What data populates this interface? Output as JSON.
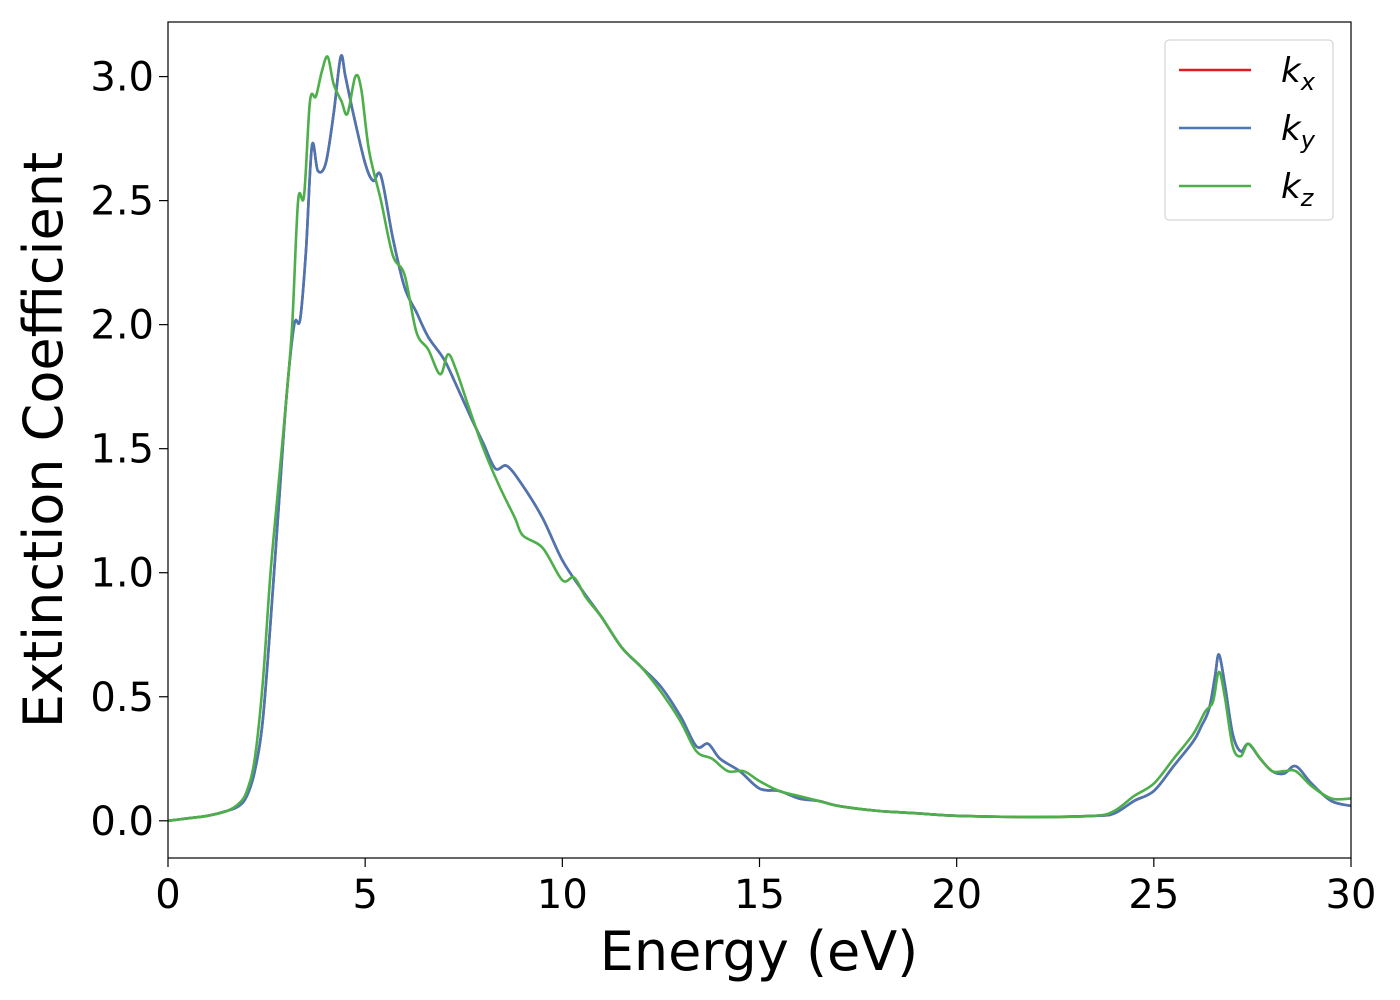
{
  "chart_data": {
    "type": "line",
    "title": "",
    "xlabel": "Energy (eV)",
    "ylabel": "Extinction Coefficient",
    "xlim": [
      0,
      30
    ],
    "ylim": [
      -0.15,
      3.22
    ],
    "xticks": [
      0,
      5,
      10,
      15,
      20,
      25,
      30
    ],
    "xtick_labels": [
      "0",
      "5",
      "10",
      "15",
      "20",
      "25",
      "30"
    ],
    "yticks": [
      0.0,
      0.5,
      1.0,
      1.5,
      2.0,
      2.5,
      3.0
    ],
    "ytick_labels": [
      "0.0",
      "0.5",
      "1.0",
      "1.5",
      "2.0",
      "2.5",
      "3.0"
    ],
    "grid": false,
    "legend_position": "top-right",
    "series": [
      {
        "name": "k",
        "subscript": "x",
        "color": "#e41a1c",
        "points": [
          [
            0,
            0
          ],
          [
            0.5,
            0.01
          ],
          [
            1,
            0.02
          ],
          [
            1.5,
            0.04
          ],
          [
            1.8,
            0.06
          ],
          [
            2.0,
            0.1
          ],
          [
            2.2,
            0.2
          ],
          [
            2.4,
            0.4
          ],
          [
            2.6,
            0.8
          ],
          [
            2.8,
            1.25
          ],
          [
            3.0,
            1.7
          ],
          [
            3.2,
            2.0
          ],
          [
            3.35,
            2.02
          ],
          [
            3.5,
            2.3
          ],
          [
            3.65,
            2.72
          ],
          [
            3.8,
            2.62
          ],
          [
            4.0,
            2.65
          ],
          [
            4.2,
            2.85
          ],
          [
            4.38,
            3.08
          ],
          [
            4.5,
            3.0
          ],
          [
            4.7,
            2.85
          ],
          [
            5.0,
            2.65
          ],
          [
            5.2,
            2.58
          ],
          [
            5.4,
            2.6
          ],
          [
            5.7,
            2.35
          ],
          [
            6.0,
            2.15
          ],
          [
            6.3,
            2.05
          ],
          [
            6.6,
            1.95
          ],
          [
            7.0,
            1.86
          ],
          [
            7.3,
            1.76
          ],
          [
            7.7,
            1.62
          ],
          [
            8.0,
            1.52
          ],
          [
            8.3,
            1.42
          ],
          [
            8.6,
            1.43
          ],
          [
            9.0,
            1.35
          ],
          [
            9.5,
            1.22
          ],
          [
            10.0,
            1.05
          ],
          [
            10.5,
            0.93
          ],
          [
            11.0,
            0.82
          ],
          [
            11.5,
            0.7
          ],
          [
            12.0,
            0.62
          ],
          [
            12.5,
            0.54
          ],
          [
            13.0,
            0.42
          ],
          [
            13.4,
            0.3
          ],
          [
            13.7,
            0.31
          ],
          [
            14.0,
            0.25
          ],
          [
            14.5,
            0.2
          ],
          [
            15.0,
            0.13
          ],
          [
            15.5,
            0.12
          ],
          [
            16.0,
            0.09
          ],
          [
            16.5,
            0.08
          ],
          [
            17.0,
            0.06
          ],
          [
            18.0,
            0.04
          ],
          [
            19.0,
            0.03
          ],
          [
            20.0,
            0.02
          ],
          [
            22.0,
            0.015
          ],
          [
            23.5,
            0.02
          ],
          [
            24.0,
            0.03
          ],
          [
            24.5,
            0.08
          ],
          [
            25.0,
            0.12
          ],
          [
            25.5,
            0.22
          ],
          [
            26.0,
            0.32
          ],
          [
            26.2,
            0.38
          ],
          [
            26.4,
            0.45
          ],
          [
            26.55,
            0.58
          ],
          [
            26.65,
            0.67
          ],
          [
            26.8,
            0.55
          ],
          [
            27.0,
            0.35
          ],
          [
            27.2,
            0.28
          ],
          [
            27.4,
            0.31
          ],
          [
            27.7,
            0.25
          ],
          [
            28.0,
            0.2
          ],
          [
            28.3,
            0.19
          ],
          [
            28.6,
            0.22
          ],
          [
            29.0,
            0.15
          ],
          [
            29.5,
            0.08
          ],
          [
            30.0,
            0.06
          ]
        ]
      },
      {
        "name": "k",
        "subscript": "y",
        "color": "#4a77b4",
        "points": [
          [
            0,
            0
          ],
          [
            0.5,
            0.01
          ],
          [
            1,
            0.02
          ],
          [
            1.5,
            0.04
          ],
          [
            1.8,
            0.06
          ],
          [
            2.0,
            0.1
          ],
          [
            2.2,
            0.2
          ],
          [
            2.4,
            0.4
          ],
          [
            2.6,
            0.8
          ],
          [
            2.8,
            1.25
          ],
          [
            3.0,
            1.7
          ],
          [
            3.2,
            2.0
          ],
          [
            3.35,
            2.02
          ],
          [
            3.5,
            2.3
          ],
          [
            3.65,
            2.72
          ],
          [
            3.8,
            2.62
          ],
          [
            4.0,
            2.65
          ],
          [
            4.2,
            2.85
          ],
          [
            4.38,
            3.08
          ],
          [
            4.5,
            3.0
          ],
          [
            4.7,
            2.85
          ],
          [
            5.0,
            2.65
          ],
          [
            5.2,
            2.58
          ],
          [
            5.4,
            2.6
          ],
          [
            5.7,
            2.35
          ],
          [
            6.0,
            2.15
          ],
          [
            6.3,
            2.05
          ],
          [
            6.6,
            1.95
          ],
          [
            7.0,
            1.86
          ],
          [
            7.3,
            1.76
          ],
          [
            7.7,
            1.62
          ],
          [
            8.0,
            1.52
          ],
          [
            8.3,
            1.42
          ],
          [
            8.6,
            1.43
          ],
          [
            9.0,
            1.35
          ],
          [
            9.5,
            1.22
          ],
          [
            10.0,
            1.05
          ],
          [
            10.5,
            0.93
          ],
          [
            11.0,
            0.82
          ],
          [
            11.5,
            0.7
          ],
          [
            12.0,
            0.62
          ],
          [
            12.5,
            0.54
          ],
          [
            13.0,
            0.42
          ],
          [
            13.4,
            0.3
          ],
          [
            13.7,
            0.31
          ],
          [
            14.0,
            0.25
          ],
          [
            14.5,
            0.2
          ],
          [
            15.0,
            0.13
          ],
          [
            15.5,
            0.12
          ],
          [
            16.0,
            0.09
          ],
          [
            16.5,
            0.08
          ],
          [
            17.0,
            0.06
          ],
          [
            18.0,
            0.04
          ],
          [
            19.0,
            0.03
          ],
          [
            20.0,
            0.02
          ],
          [
            22.0,
            0.015
          ],
          [
            23.5,
            0.02
          ],
          [
            24.0,
            0.03
          ],
          [
            24.5,
            0.08
          ],
          [
            25.0,
            0.12
          ],
          [
            25.5,
            0.22
          ],
          [
            26.0,
            0.32
          ],
          [
            26.2,
            0.38
          ],
          [
            26.4,
            0.45
          ],
          [
            26.55,
            0.58
          ],
          [
            26.65,
            0.67
          ],
          [
            26.8,
            0.55
          ],
          [
            27.0,
            0.35
          ],
          [
            27.2,
            0.28
          ],
          [
            27.4,
            0.31
          ],
          [
            27.7,
            0.25
          ],
          [
            28.0,
            0.2
          ],
          [
            28.3,
            0.19
          ],
          [
            28.6,
            0.22
          ],
          [
            29.0,
            0.15
          ],
          [
            29.5,
            0.08
          ],
          [
            30.0,
            0.06
          ]
        ]
      },
      {
        "name": "k",
        "subscript": "z",
        "color": "#4daf4a",
        "points": [
          [
            0,
            0
          ],
          [
            0.5,
            0.01
          ],
          [
            1,
            0.02
          ],
          [
            1.5,
            0.04
          ],
          [
            1.8,
            0.07
          ],
          [
            2.0,
            0.12
          ],
          [
            2.2,
            0.25
          ],
          [
            2.4,
            0.55
          ],
          [
            2.6,
            1.0
          ],
          [
            2.8,
            1.35
          ],
          [
            3.0,
            1.7
          ],
          [
            3.15,
            2.0
          ],
          [
            3.3,
            2.5
          ],
          [
            3.45,
            2.52
          ],
          [
            3.6,
            2.9
          ],
          [
            3.75,
            2.92
          ],
          [
            3.9,
            3.02
          ],
          [
            4.05,
            3.08
          ],
          [
            4.2,
            2.97
          ],
          [
            4.4,
            2.9
          ],
          [
            4.55,
            2.85
          ],
          [
            4.75,
            3.0
          ],
          [
            4.9,
            2.95
          ],
          [
            5.1,
            2.7
          ],
          [
            5.4,
            2.5
          ],
          [
            5.7,
            2.28
          ],
          [
            6.0,
            2.2
          ],
          [
            6.3,
            1.97
          ],
          [
            6.6,
            1.9
          ],
          [
            6.9,
            1.8
          ],
          [
            7.1,
            1.88
          ],
          [
            7.3,
            1.82
          ],
          [
            7.6,
            1.68
          ],
          [
            8.0,
            1.5
          ],
          [
            8.4,
            1.35
          ],
          [
            8.8,
            1.22
          ],
          [
            9.0,
            1.15
          ],
          [
            9.5,
            1.1
          ],
          [
            10.0,
            0.97
          ],
          [
            10.3,
            0.98
          ],
          [
            10.6,
            0.9
          ],
          [
            11.0,
            0.82
          ],
          [
            11.5,
            0.7
          ],
          [
            12.0,
            0.62
          ],
          [
            12.5,
            0.52
          ],
          [
            13.0,
            0.4
          ],
          [
            13.4,
            0.28
          ],
          [
            13.8,
            0.25
          ],
          [
            14.2,
            0.2
          ],
          [
            14.6,
            0.2
          ],
          [
            15.0,
            0.16
          ],
          [
            15.5,
            0.12
          ],
          [
            16.0,
            0.1
          ],
          [
            16.5,
            0.08
          ],
          [
            17.0,
            0.06
          ],
          [
            18.0,
            0.04
          ],
          [
            19.0,
            0.03
          ],
          [
            20.0,
            0.02
          ],
          [
            22.0,
            0.015
          ],
          [
            23.5,
            0.02
          ],
          [
            24.0,
            0.04
          ],
          [
            24.5,
            0.1
          ],
          [
            25.0,
            0.15
          ],
          [
            25.5,
            0.25
          ],
          [
            26.0,
            0.35
          ],
          [
            26.3,
            0.44
          ],
          [
            26.5,
            0.48
          ],
          [
            26.65,
            0.6
          ],
          [
            26.8,
            0.5
          ],
          [
            27.0,
            0.3
          ],
          [
            27.2,
            0.26
          ],
          [
            27.4,
            0.31
          ],
          [
            27.7,
            0.25
          ],
          [
            28.0,
            0.2
          ],
          [
            28.3,
            0.2
          ],
          [
            28.6,
            0.2
          ],
          [
            29.0,
            0.14
          ],
          [
            29.5,
            0.09
          ],
          [
            30.0,
            0.09
          ]
        ]
      }
    ]
  }
}
